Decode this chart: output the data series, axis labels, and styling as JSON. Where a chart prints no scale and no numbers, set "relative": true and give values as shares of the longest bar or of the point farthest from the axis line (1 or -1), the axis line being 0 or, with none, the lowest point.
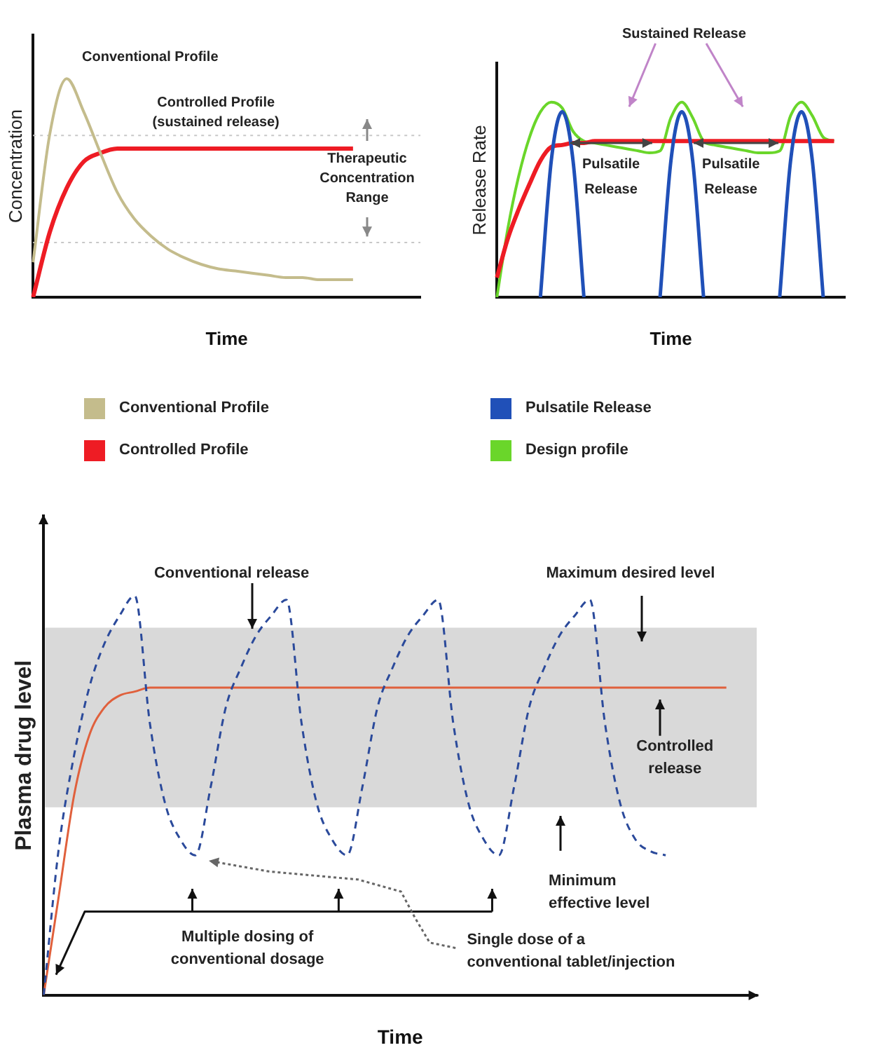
{
  "chart_data": [
    {
      "type": "line",
      "xlabel": "Time",
      "ylabel": "Concentration",
      "relative": true,
      "marker": "none",
      "legend": "bottom",
      "categories": [
        null,
        null,
        null,
        null,
        null,
        null,
        null,
        null,
        null,
        null,
        null,
        null,
        null,
        null,
        null,
        null,
        null,
        null,
        null,
        null,
        null,
        null,
        null,
        null
      ],
      "series": [
        {
          "name": "Conventional Profile",
          "color": "#c4bc8c",
          "values": [
            0.16,
            0.75,
            1,
            0.85,
            0.66,
            0.48,
            0.36,
            0.28,
            0.22,
            0.18,
            0.15,
            0.13,
            0.12,
            0.11,
            0.1,
            0.09,
            0.09,
            0.08,
            0.08,
            0.08,
            null,
            null,
            null,
            null
          ]
        },
        {
          "name": "Controlled Profile",
          "color": "#ee1c24",
          "values": [
            0,
            0.3,
            0.5,
            0.62,
            0.66,
            0.68,
            0.68,
            0.68,
            0.68,
            0.68,
            0.68,
            0.68,
            0.68,
            0.68,
            0.68,
            0.68,
            0.68,
            0.68,
            0.68,
            0.68,
            null,
            null,
            null,
            null
          ]
        }
      ],
      "ref_lines": [
        {
          "axis": "y",
          "value": 0.74,
          "color": "#c8c8c8",
          "line_style": "dotted"
        },
        {
          "axis": "y",
          "value": 0.25,
          "color": "#c8c8c8",
          "line_style": "dotted"
        }
      ],
      "annotations": [
        "Conventional Profile",
        "Controlled Profile (sustained release)",
        "Therapeutic Concentration Range"
      ]
    },
    {
      "type": "line",
      "xlabel": "Time",
      "ylabel": "Release Rate",
      "relative": true,
      "marker": "none",
      "legend": "bottom",
      "categories": [
        null,
        null,
        null,
        null,
        null,
        null,
        null,
        null,
        null,
        null,
        null,
        null,
        null,
        null,
        null,
        null,
        null,
        null,
        null,
        null,
        null,
        null,
        null,
        null,
        null,
        null,
        null,
        null,
        null,
        null,
        null,
        null,
        null
      ],
      "series": [
        {
          "name": "Pulsatile Release",
          "color": "#2050b8",
          "values": [
            null,
            null,
            null,
            null,
            0,
            0.7,
            0.95,
            0.7,
            0,
            null,
            null,
            null,
            null,
            null,
            null,
            0,
            0.7,
            0.95,
            0.7,
            0,
            null,
            null,
            null,
            null,
            null,
            null,
            0,
            0.7,
            0.95,
            0.7,
            0,
            null,
            null
          ]
        },
        {
          "color": "#ee1c24",
          "values": [
            0.1,
            0.3,
            0.45,
            0.58,
            0.7,
            0.77,
            0.78,
            0.79,
            0.79,
            0.8,
            0.8,
            0.8,
            0.8,
            0.8,
            0.8,
            0.8,
            0.8,
            0.8,
            0.8,
            0.8,
            0.8,
            0.8,
            0.8,
            0.8,
            0.8,
            0.8,
            0.8,
            0.8,
            0.8,
            0.8,
            0.8,
            0.8,
            null
          ]
        },
        {
          "name": "Design profile",
          "color": "#6ad62a",
          "values": [
            0,
            0.35,
            0.62,
            0.82,
            0.95,
            1,
            0.97,
            0.85,
            0.8,
            0.79,
            0.78,
            0.77,
            0.76,
            0.75,
            0.74,
            0.75,
            0.92,
            1,
            0.92,
            0.8,
            0.78,
            0.77,
            0.76,
            0.75,
            0.74,
            0.74,
            0.75,
            0.93,
            1,
            0.93,
            0.82,
            0.8,
            null
          ]
        }
      ],
      "annotations": [
        "Sustained Release",
        "Pulsatile Release",
        "Pulsatile Release"
      ]
    },
    {
      "type": "line",
      "xlabel": "Time",
      "ylabel": "Plasma drug level",
      "relative": true,
      "marker": "none",
      "categories": [
        null,
        null,
        null,
        null,
        null,
        null,
        null,
        null,
        null,
        null,
        null,
        null,
        null,
        null,
        null,
        null,
        null,
        null,
        null,
        null,
        null,
        null,
        null,
        null,
        null,
        null,
        null,
        null,
        null,
        null,
        null,
        null,
        null,
        null,
        null,
        null,
        null,
        null,
        null,
        null,
        null,
        null,
        null,
        null,
        null,
        null,
        null,
        null
      ],
      "series": [
        {
          "color": "#2b4a9b",
          "line_style": "dashed",
          "values": [
            0,
            0.37,
            0.6,
            0.77,
            0.88,
            0.95,
            1,
            0.68,
            0.48,
            0.39,
            0.35,
            0.52,
            0.72,
            0.82,
            0.9,
            0.95,
            0.99,
            0.68,
            0.48,
            0.39,
            0.35,
            0.52,
            0.72,
            0.82,
            0.9,
            0.95,
            0.99,
            0.68,
            0.48,
            0.39,
            0.35,
            0.52,
            0.72,
            0.82,
            0.9,
            0.95,
            0.99,
            0.68,
            0.48,
            0.39,
            0.36,
            0.35,
            null,
            null,
            null,
            null,
            null,
            null
          ]
        },
        {
          "color": "#e0603c",
          "values": [
            0,
            0.25,
            0.5,
            0.65,
            0.72,
            0.75,
            0.76,
            0.77,
            0.77,
            0.77,
            0.77,
            0.77,
            0.77,
            0.77,
            0.77,
            0.77,
            0.77,
            0.77,
            0.77,
            0.77,
            0.77,
            0.77,
            0.77,
            0.77,
            0.77,
            0.77,
            0.77,
            0.77,
            0.77,
            0.77,
            0.77,
            0.77,
            0.77,
            0.77,
            0.77,
            0.77,
            0.77,
            0.77,
            0.77,
            0.77,
            0.77,
            0.77,
            0.77,
            0.77,
            0.77,
            0.77,
            null,
            null
          ]
        }
      ],
      "bands": [
        {
          "axis": "y",
          "from": 0.47,
          "to": 0.92,
          "color": "#d9d9d9"
        }
      ],
      "annotations": [
        "Conventional release",
        "Maximum desired level",
        "Controlled release",
        "Minimum effective level",
        "Multiple dosing of conventional dosage",
        "Single dose of a conventional tablet/injection"
      ]
    }
  ]
}
